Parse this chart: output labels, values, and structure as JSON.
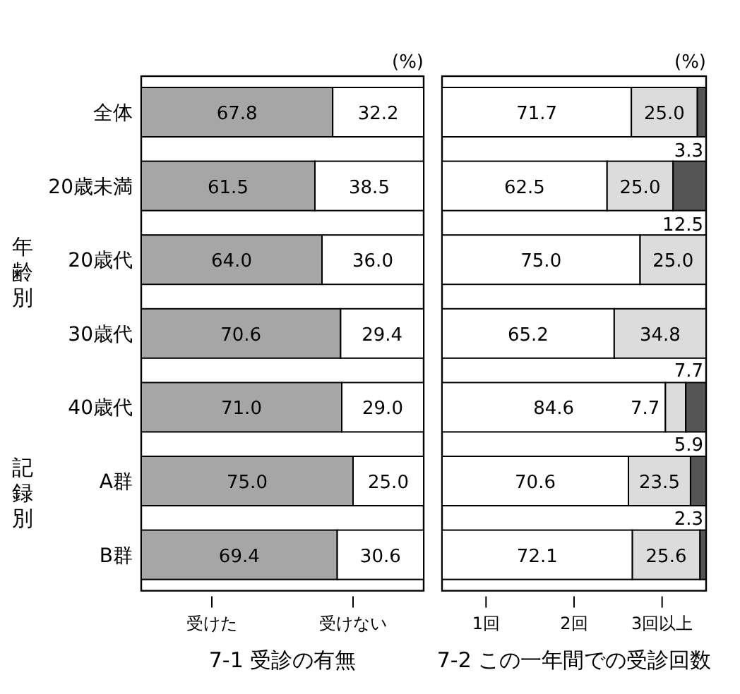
{
  "chart_data": [
    {
      "type": "bar",
      "orientation": "horizontal",
      "stacked": true,
      "title": "7-1 受診の有無",
      "categories": [
        "全体",
        "20歳未満",
        "20歳代",
        "30歳代",
        "40歳代",
        "A群",
        "B群"
      ],
      "series": [
        {
          "name": "受けた",
          "color": "#a6a6a6",
          "values": [
            67.8,
            61.5,
            64.0,
            70.6,
            71.0,
            75.0,
            69.4
          ],
          "value_labels": [
            "67.8",
            "61.5",
            "64.0",
            "70.6",
            "71.0",
            "75.0",
            "69.4"
          ]
        },
        {
          "name": "受けない",
          "color": "#ffffff",
          "values": [
            32.2,
            38.5,
            36.0,
            29.4,
            29.0,
            25.0,
            30.6
          ],
          "value_labels": [
            "32.2",
            "38.5",
            "36.0",
            "29.4",
            "29.0",
            "25.0",
            "30.6"
          ]
        }
      ],
      "legend": "bottom",
      "annotations": [
        "(%)",
        "年齢別",
        "記録別"
      ]
    },
    {
      "type": "bar",
      "orientation": "horizontal",
      "stacked": true,
      "title": "7-2 この一年間での受診回数",
      "legend": "bottom",
      "categories": [
        null,
        null,
        null,
        null,
        null,
        null,
        null
      ],
      "series": [
        {
          "name": "1回",
          "color": "#ffffff",
          "values": [
            71.7,
            62.5,
            75.0,
            65.2,
            84.6,
            70.6,
            72.1
          ],
          "value_labels": [
            "71.7",
            "62.5",
            "75.0",
            "65.2",
            "84.6",
            "70.6",
            "72.1"
          ]
        },
        {
          "name": "2回",
          "color": "#dcdcdc",
          "values": [
            25.0,
            25.0,
            25.0,
            34.8,
            7.7,
            23.5,
            25.6
          ],
          "value_labels": [
            "25.0",
            "25.0",
            "25.0",
            "34.8",
            "7.7",
            "23.5",
            "25.6"
          ]
        },
        {
          "name": "3回以上",
          "color": "#555555",
          "values": [
            3.3,
            12.5,
            0,
            0,
            7.7,
            5.9,
            2.3
          ],
          "value_labels": [
            "3.3",
            "12.5",
            null,
            null,
            "7.7",
            "5.9",
            "2.3"
          ]
        }
      ],
      "annotations": [
        "(%)"
      ]
    }
  ]
}
